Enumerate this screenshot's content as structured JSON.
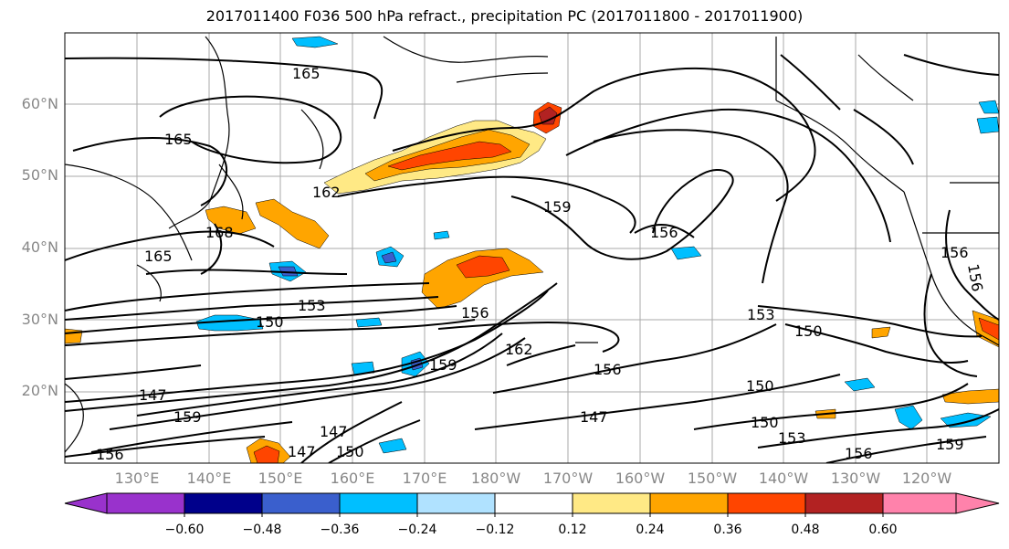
{
  "title": "2017011400 F036 500 hPa refract., precipitation PC (2017011800 - 2017011900)",
  "lat_labels": [
    "60°N",
    "50°N",
    "40°N",
    "30°N",
    "20°N"
  ],
  "lon_labels": [
    "130°E",
    "140°E",
    "150°E",
    "160°E",
    "170°E",
    "180°W",
    "170°W",
    "160°W",
    "150°W",
    "140°W",
    "130°W",
    "120°W"
  ],
  "contour_labels": [
    "165",
    "165",
    "162",
    "159",
    "156",
    "168",
    "165",
    "153",
    "150",
    "156",
    "162",
    "159",
    "156",
    "153",
    "150",
    "150",
    "147",
    "147",
    "159",
    "156",
    "147",
    "150",
    "147",
    "150",
    "153",
    "156",
    "159",
    "156",
    "156"
  ],
  "colorbar": {
    "ticks": [
      "−0.60",
      "−0.48",
      "−0.36",
      "−0.24",
      "−0.12",
      "0.12",
      "0.24",
      "0.36",
      "0.48",
      "0.60"
    ],
    "colors": [
      "#9932cc",
      "#00008b",
      "#3a5fcd",
      "#00bfff",
      "#b0e2ff",
      "#ffffff",
      "#ffe985",
      "#ffa500",
      "#ff4500",
      "#b22222",
      "#ff82ab"
    ]
  }
}
